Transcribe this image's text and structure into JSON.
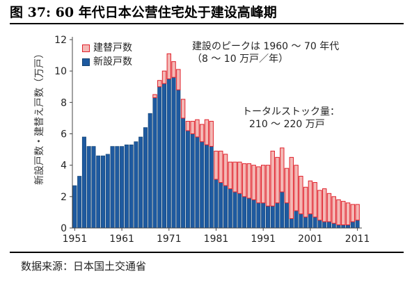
{
  "figure": {
    "title": "图 37: 60 年代日本公营住宅处于建设高峰期",
    "source": "数据来源：日本国土交通省"
  },
  "colors": {
    "new_fill": "#1e5aa0",
    "new_edge": "#13426f",
    "rep_fill": "#f4b8b5",
    "rep_edge": "#e0202a"
  },
  "annotations": {
    "boom_line1": "建設のピークは 1960 ～ 70 年代",
    "boom_line2": "（8 ～ 10 万戸／年）",
    "stock_line1": "トータルストック量：",
    "stock_line2": "210 ～ 220 万戸"
  },
  "chart_data": {
    "type": "bar",
    "stacked": true,
    "ylabel": "新設戸数・建替え戸数（万戸）",
    "ylim": [
      0,
      12
    ],
    "yticks": [
      0,
      2,
      4,
      6,
      8,
      10,
      12
    ],
    "xlim": [
      1951,
      2011
    ],
    "xticks": [
      "1951",
      "1961",
      "1971",
      "1981",
      "1991",
      "2001",
      "2011"
    ],
    "grid": false,
    "legend_position": "top-left",
    "x": [
      1951,
      1952,
      1953,
      1954,
      1955,
      1956,
      1957,
      1958,
      1959,
      1960,
      1961,
      1962,
      1963,
      1964,
      1965,
      1966,
      1967,
      1968,
      1969,
      1970,
      1971,
      1972,
      1973,
      1974,
      1975,
      1976,
      1977,
      1978,
      1979,
      1980,
      1981,
      1982,
      1983,
      1984,
      1985,
      1986,
      1987,
      1988,
      1989,
      1990,
      1991,
      1992,
      1993,
      1994,
      1995,
      1996,
      1997,
      1998,
      1999,
      2000,
      2001,
      2002,
      2003,
      2004,
      2005,
      2006,
      2007,
      2008,
      2009,
      2010,
      2011
    ],
    "series": [
      {
        "name": "新設戸数",
        "values": [
          2.7,
          3.3,
          5.8,
          5.2,
          5.2,
          4.6,
          4.6,
          4.7,
          5.2,
          5.2,
          5.2,
          5.3,
          5.3,
          5.5,
          5.8,
          6.4,
          7.3,
          8.3,
          9.0,
          9.2,
          9.5,
          9.6,
          8.8,
          7.0,
          6.2,
          6.0,
          5.8,
          5.5,
          5.3,
          5.2,
          3.1,
          2.9,
          2.7,
          2.5,
          2.3,
          2.2,
          2.0,
          1.9,
          1.8,
          1.6,
          1.6,
          1.4,
          1.4,
          1.6,
          2.3,
          1.6,
          0.6,
          1.1,
          0.9,
          0.7,
          0.9,
          0.7,
          0.5,
          0.4,
          0.4,
          0.3,
          0.2,
          0.2,
          0.2,
          0.4,
          0.5
        ]
      },
      {
        "name": "建替戸数",
        "values": [
          0,
          0,
          0,
          0,
          0,
          0,
          0,
          0,
          0,
          0,
          0,
          0,
          0,
          0,
          0,
          0,
          0,
          0.2,
          0.4,
          0.8,
          1.6,
          1.0,
          1.3,
          1.2,
          0.6,
          0.8,
          1.1,
          1.1,
          1.6,
          1.6,
          1.8,
          2.0,
          2.0,
          1.7,
          1.9,
          2.0,
          2.1,
          2.2,
          2.2,
          2.3,
          2.4,
          2.6,
          3.5,
          2.9,
          2.8,
          2.2,
          3.9,
          2.9,
          2.4,
          1.9,
          2.1,
          2.2,
          1.9,
          2.1,
          1.8,
          1.7,
          1.6,
          1.5,
          1.4,
          1.1,
          1.0
        ]
      }
    ]
  }
}
